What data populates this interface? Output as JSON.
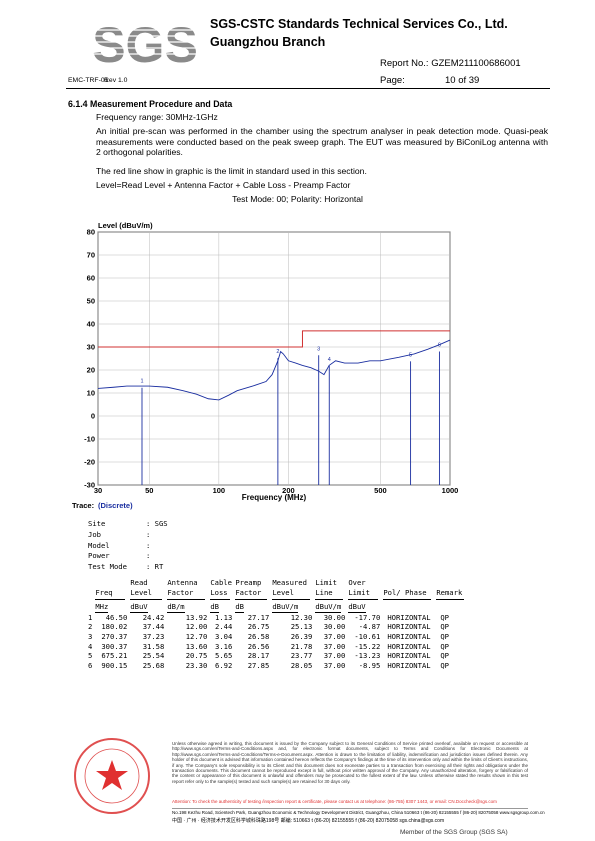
{
  "header": {
    "logo": "SGS",
    "company": "SGS-CSTC Standards Technical Services Co., Ltd.",
    "branch": "Guangzhou Branch",
    "report_no": "Report No.: GZEM211100686001",
    "form": "EMC-TRF-01",
    "rev": "Rev 1.0",
    "page_label": "Page:",
    "page": "10 of 39"
  },
  "section": {
    "heading": "6.1.4  Measurement  Procedure and Data",
    "paragraphs": [
      "Frequency range: 30MHz-1GHz",
      "An initial pre-scan was performed in the chamber using the spectrum analyser in peak detection mode. Quasi-peak measurements were conducted based on the peak sweep graph. The EUT was measured by BiConiLog antenna with 2 orthogonal polarities.",
      "The red line show in graphic is the limit in standard used in this section.",
      "Level=Read Level + Antenna Factor + Cable Loss - Preamp Factor"
    ],
    "test_mode": "Test Mode: 00; Polarity: Horizontal"
  },
  "chart_data": {
    "type": "line",
    "title": "Level (dBuV/m)",
    "xlabel": "Frequency (MHz)",
    "trace_label": "Trace:",
    "trace_name": "(Discrete)",
    "log_x": true,
    "grid": true,
    "xlim": [
      30,
      1000
    ],
    "xticks": [
      30,
      50,
      100,
      200,
      500,
      1000
    ],
    "ylim": [
      -30,
      80
    ],
    "yticks": [
      -30,
      -20,
      -10,
      0,
      10,
      20,
      30,
      40,
      50,
      60,
      70,
      80
    ],
    "series": [
      {
        "name": "Limit",
        "color": "#d03030",
        "x": [
          30,
          230,
          230,
          1000
        ],
        "values": [
          30,
          30,
          37,
          37
        ]
      },
      {
        "name": "Trace",
        "color": "#1a2ea0",
        "x": [
          30,
          35,
          40,
          45,
          50,
          60,
          70,
          80,
          90,
          100,
          110,
          120,
          140,
          160,
          170,
          180,
          185,
          190,
          200,
          215,
          230,
          250,
          270,
          285,
          300,
          320,
          350,
          400,
          450,
          500,
          600,
          700,
          800,
          900,
          1000
        ],
        "values": [
          12,
          12.5,
          13,
          13,
          13,
          12.5,
          11,
          9.5,
          7.5,
          7,
          9,
          11,
          13,
          15,
          18,
          24,
          28,
          27,
          24,
          23,
          22,
          21,
          19.5,
          18,
          22,
          24,
          23,
          23,
          24,
          24,
          25.5,
          27,
          29,
          31,
          33
        ]
      }
    ]
  },
  "info": [
    {
      "label": "Site",
      "value": "SGS"
    },
    {
      "label": "Job"
    },
    {
      "label": "Model"
    },
    {
      "label": "Power"
    },
    {
      "label": "Test Mode",
      "value": "RT"
    }
  ],
  "table": {
    "columns": [
      {
        "name": "Freq",
        "unit": "MHz"
      },
      {
        "name": "Read Level",
        "unit": "dBuV"
      },
      {
        "name": "Antenna Factor",
        "unit": "dB/m"
      },
      {
        "name": "Cable Loss",
        "unit": "dB"
      },
      {
        "name": "Preamp Factor",
        "unit": "dB"
      },
      {
        "name": "Measured Level",
        "unit": "dBuV/m"
      },
      {
        "name": "Limit Line",
        "unit": "dBuV/m"
      },
      {
        "name": "Over Limit",
        "unit": "dBuV"
      },
      {
        "name": "Pol/ Phase"
      },
      {
        "name": "Remark"
      }
    ],
    "rows": [
      [
        "1",
        "46.50",
        "24.42",
        "13.92",
        "1.13",
        "27.17",
        "12.30",
        "30.00",
        "-17.70",
        "HORIZONTAL",
        "QP"
      ],
      [
        "2",
        "180.02",
        "37.44",
        "12.00",
        "2.44",
        "26.75",
        "25.13",
        "30.00",
        "-4.87",
        "HORIZONTAL",
        "QP"
      ],
      [
        "3",
        "270.37",
        "37.23",
        "12.70",
        "3.04",
        "26.58",
        "26.39",
        "37.00",
        "-10.61",
        "HORIZONTAL",
        "QP"
      ],
      [
        "4",
        "300.37",
        "31.58",
        "13.60",
        "3.16",
        "26.56",
        "21.78",
        "37.00",
        "-15.22",
        "HORIZONTAL",
        "QP"
      ],
      [
        "5",
        "675.21",
        "25.54",
        "20.75",
        "5.65",
        "28.17",
        "23.77",
        "37.00",
        "-13.23",
        "HORIZONTAL",
        "QP"
      ],
      [
        "6",
        "900.15",
        "25.68",
        "23.30",
        "6.92",
        "27.85",
        "28.05",
        "37.00",
        "-8.95",
        "HORIZONTAL",
        "QP"
      ]
    ]
  },
  "footer": {
    "disclaimer": "Unless otherwise agreed in writing, this document is issued by the Company subject to its General Conditions of Service printed overleaf, available on request or accessible at http://www.sgs.com/en/Terms-and-Conditions.aspx and, for electronic format documents, subject to Terms and Conditions for Electronic Documents at http://www.sgs.com/en/Terms-and-Conditions/Terms-e-Document.aspx. Attention is drawn to the limitation of liability, indemnification and jurisdiction issues defined therein. Any holder of this document is advised that information contained hereon reflects the Company's findings at the time of its intervention only and within the limits of Client's instructions, if any. The Company's sole responsibility is to its Client and this document does not exonerate parties to a transaction from exercising all their rights and obligations under the transaction documents. This document cannot be reproduced except in full, without prior written approval of the Company. Any unauthorized alteration, forgery or falsification of the content or appearance of this document is unlawful and offenders may be prosecuted to the fullest extent of the law. Unless otherwise stated the results shown in this test report refer only to the sample(s) tested and such sample(s) are retained for 30 days only.",
    "attention": "Attention: To check the authenticity of testing /inspection report & certificate, please contact us at telephone: (86-755) 8307 1443, or email: CN.Doccheck@sgs.com",
    "address_en": "No.198 Kezhu Road, Scientech Park, Guangzhou Economic & Technology Development District, Guangzhou, China  510663   t (86-20) 82155555   f (86-20) 82075058   www.sgsgroup.com.cn",
    "address_cn": "中国 · 广州 · 经济技术开发区科学城科珠路198号       邮编: 510663   t (86-20) 82155555   f (86-20) 82075058   sgs.china@sgs.com",
    "member": "Member of the SGS Group (SGS SA)"
  }
}
